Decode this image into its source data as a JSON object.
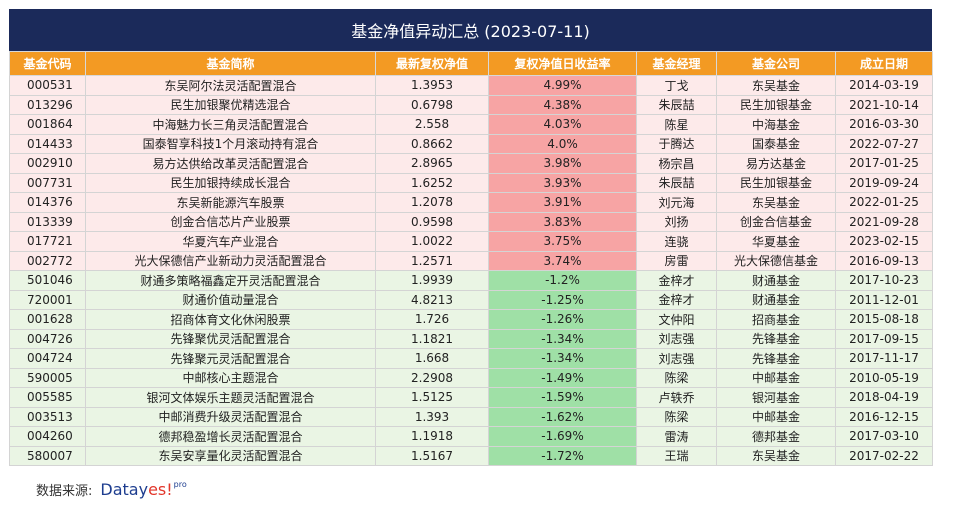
{
  "title": "基金净值异动汇总 (2023-07-11)",
  "columns": [
    "基金代码",
    "基金简称",
    "最新复权净值",
    "复权净值日收益率",
    "基金经理",
    "基金公司",
    "成立日期"
  ],
  "rows": [
    {
      "code": "000531",
      "name": "东吴阿尔法灵活配置混合",
      "nav": "1.3953",
      "ret": "4.99%",
      "manager": "丁戈",
      "company": "东吴基金",
      "date": "2014-03-19",
      "dir": "up"
    },
    {
      "code": "013296",
      "name": "民生加银聚优精选混合",
      "nav": "0.6798",
      "ret": "4.38%",
      "manager": "朱辰喆",
      "company": "民生加银基金",
      "date": "2021-10-14",
      "dir": "up"
    },
    {
      "code": "001864",
      "name": "中海魅力长三角灵活配置混合",
      "nav": "2.558",
      "ret": "4.03%",
      "manager": "陈星",
      "company": "中海基金",
      "date": "2016-03-30",
      "dir": "up"
    },
    {
      "code": "014433",
      "name": "国泰智享科技1个月滚动持有混合",
      "nav": "0.8662",
      "ret": "4.0%",
      "manager": "于腾达",
      "company": "国泰基金",
      "date": "2022-07-27",
      "dir": "up"
    },
    {
      "code": "002910",
      "name": "易方达供给改革灵活配置混合",
      "nav": "2.8965",
      "ret": "3.98%",
      "manager": "杨宗昌",
      "company": "易方达基金",
      "date": "2017-01-25",
      "dir": "up"
    },
    {
      "code": "007731",
      "name": "民生加银持续成长混合",
      "nav": "1.6252",
      "ret": "3.93%",
      "manager": "朱辰喆",
      "company": "民生加银基金",
      "date": "2019-09-24",
      "dir": "up"
    },
    {
      "code": "014376",
      "name": "东吴新能源汽车股票",
      "nav": "1.2078",
      "ret": "3.91%",
      "manager": "刘元海",
      "company": "东吴基金",
      "date": "2022-01-25",
      "dir": "up"
    },
    {
      "code": "013339",
      "name": "创金合信芯片产业股票",
      "nav": "0.9598",
      "ret": "3.83%",
      "manager": "刘扬",
      "company": "创金合信基金",
      "date": "2021-09-28",
      "dir": "up"
    },
    {
      "code": "017721",
      "name": "华夏汽车产业混合",
      "nav": "1.0022",
      "ret": "3.75%",
      "manager": "连骁",
      "company": "华夏基金",
      "date": "2023-02-15",
      "dir": "up"
    },
    {
      "code": "002772",
      "name": "光大保德信产业新动力灵活配置混合",
      "nav": "1.2571",
      "ret": "3.74%",
      "manager": "房雷",
      "company": "光大保德信基金",
      "date": "2016-09-13",
      "dir": "up"
    },
    {
      "code": "501046",
      "name": "财通多策略福鑫定开灵活配置混合",
      "nav": "1.9939",
      "ret": "-1.2%",
      "manager": "金梓才",
      "company": "财通基金",
      "date": "2017-10-23",
      "dir": "down"
    },
    {
      "code": "720001",
      "name": "财通价值动量混合",
      "nav": "4.8213",
      "ret": "-1.25%",
      "manager": "金梓才",
      "company": "财通基金",
      "date": "2011-12-01",
      "dir": "down"
    },
    {
      "code": "001628",
      "name": "招商体育文化休闲股票",
      "nav": "1.726",
      "ret": "-1.26%",
      "manager": "文仲阳",
      "company": "招商基金",
      "date": "2015-08-18",
      "dir": "down"
    },
    {
      "code": "004726",
      "name": "先锋聚优灵活配置混合",
      "nav": "1.1821",
      "ret": "-1.34%",
      "manager": "刘志强",
      "company": "先锋基金",
      "date": "2017-09-15",
      "dir": "down"
    },
    {
      "code": "004724",
      "name": "先锋聚元灵活配置混合",
      "nav": "1.668",
      "ret": "-1.34%",
      "manager": "刘志强",
      "company": "先锋基金",
      "date": "2017-11-17",
      "dir": "down"
    },
    {
      "code": "590005",
      "name": "中邮核心主题混合",
      "nav": "2.2908",
      "ret": "-1.49%",
      "manager": "陈梁",
      "company": "中邮基金",
      "date": "2010-05-19",
      "dir": "down"
    },
    {
      "code": "005585",
      "name": "银河文体娱乐主题灵活配置混合",
      "nav": "1.5125",
      "ret": "-1.59%",
      "manager": "卢轶乔",
      "company": "银河基金",
      "date": "2018-04-19",
      "dir": "down"
    },
    {
      "code": "003513",
      "name": "中邮消费升级灵活配置混合",
      "nav": "1.393",
      "ret": "-1.62%",
      "manager": "陈梁",
      "company": "中邮基金",
      "date": "2016-12-15",
      "dir": "down"
    },
    {
      "code": "004260",
      "name": "德邦稳盈增长灵活配置混合",
      "nav": "1.1918",
      "ret": "-1.69%",
      "manager": "雷涛",
      "company": "德邦基金",
      "date": "2017-03-10",
      "dir": "down"
    },
    {
      "code": "580007",
      "name": "东吴安享量化灵活配置混合",
      "nav": "1.5167",
      "ret": "-1.72%",
      "manager": "王瑞",
      "company": "东吴基金",
      "date": "2017-02-22",
      "dir": "down"
    }
  ],
  "colors": {
    "title_bg": "#1b2a5a",
    "header_bg": "#f39a23",
    "up_row": "#fdeaea",
    "up_ret": "#f7a4a4",
    "down_row": "#eaf5e4",
    "down_ret": "#9fe0a6"
  },
  "footer": {
    "label": "数据来源:",
    "logo_main": "Datay",
    "logo_accent": "es!",
    "logo_sup": "pro"
  }
}
